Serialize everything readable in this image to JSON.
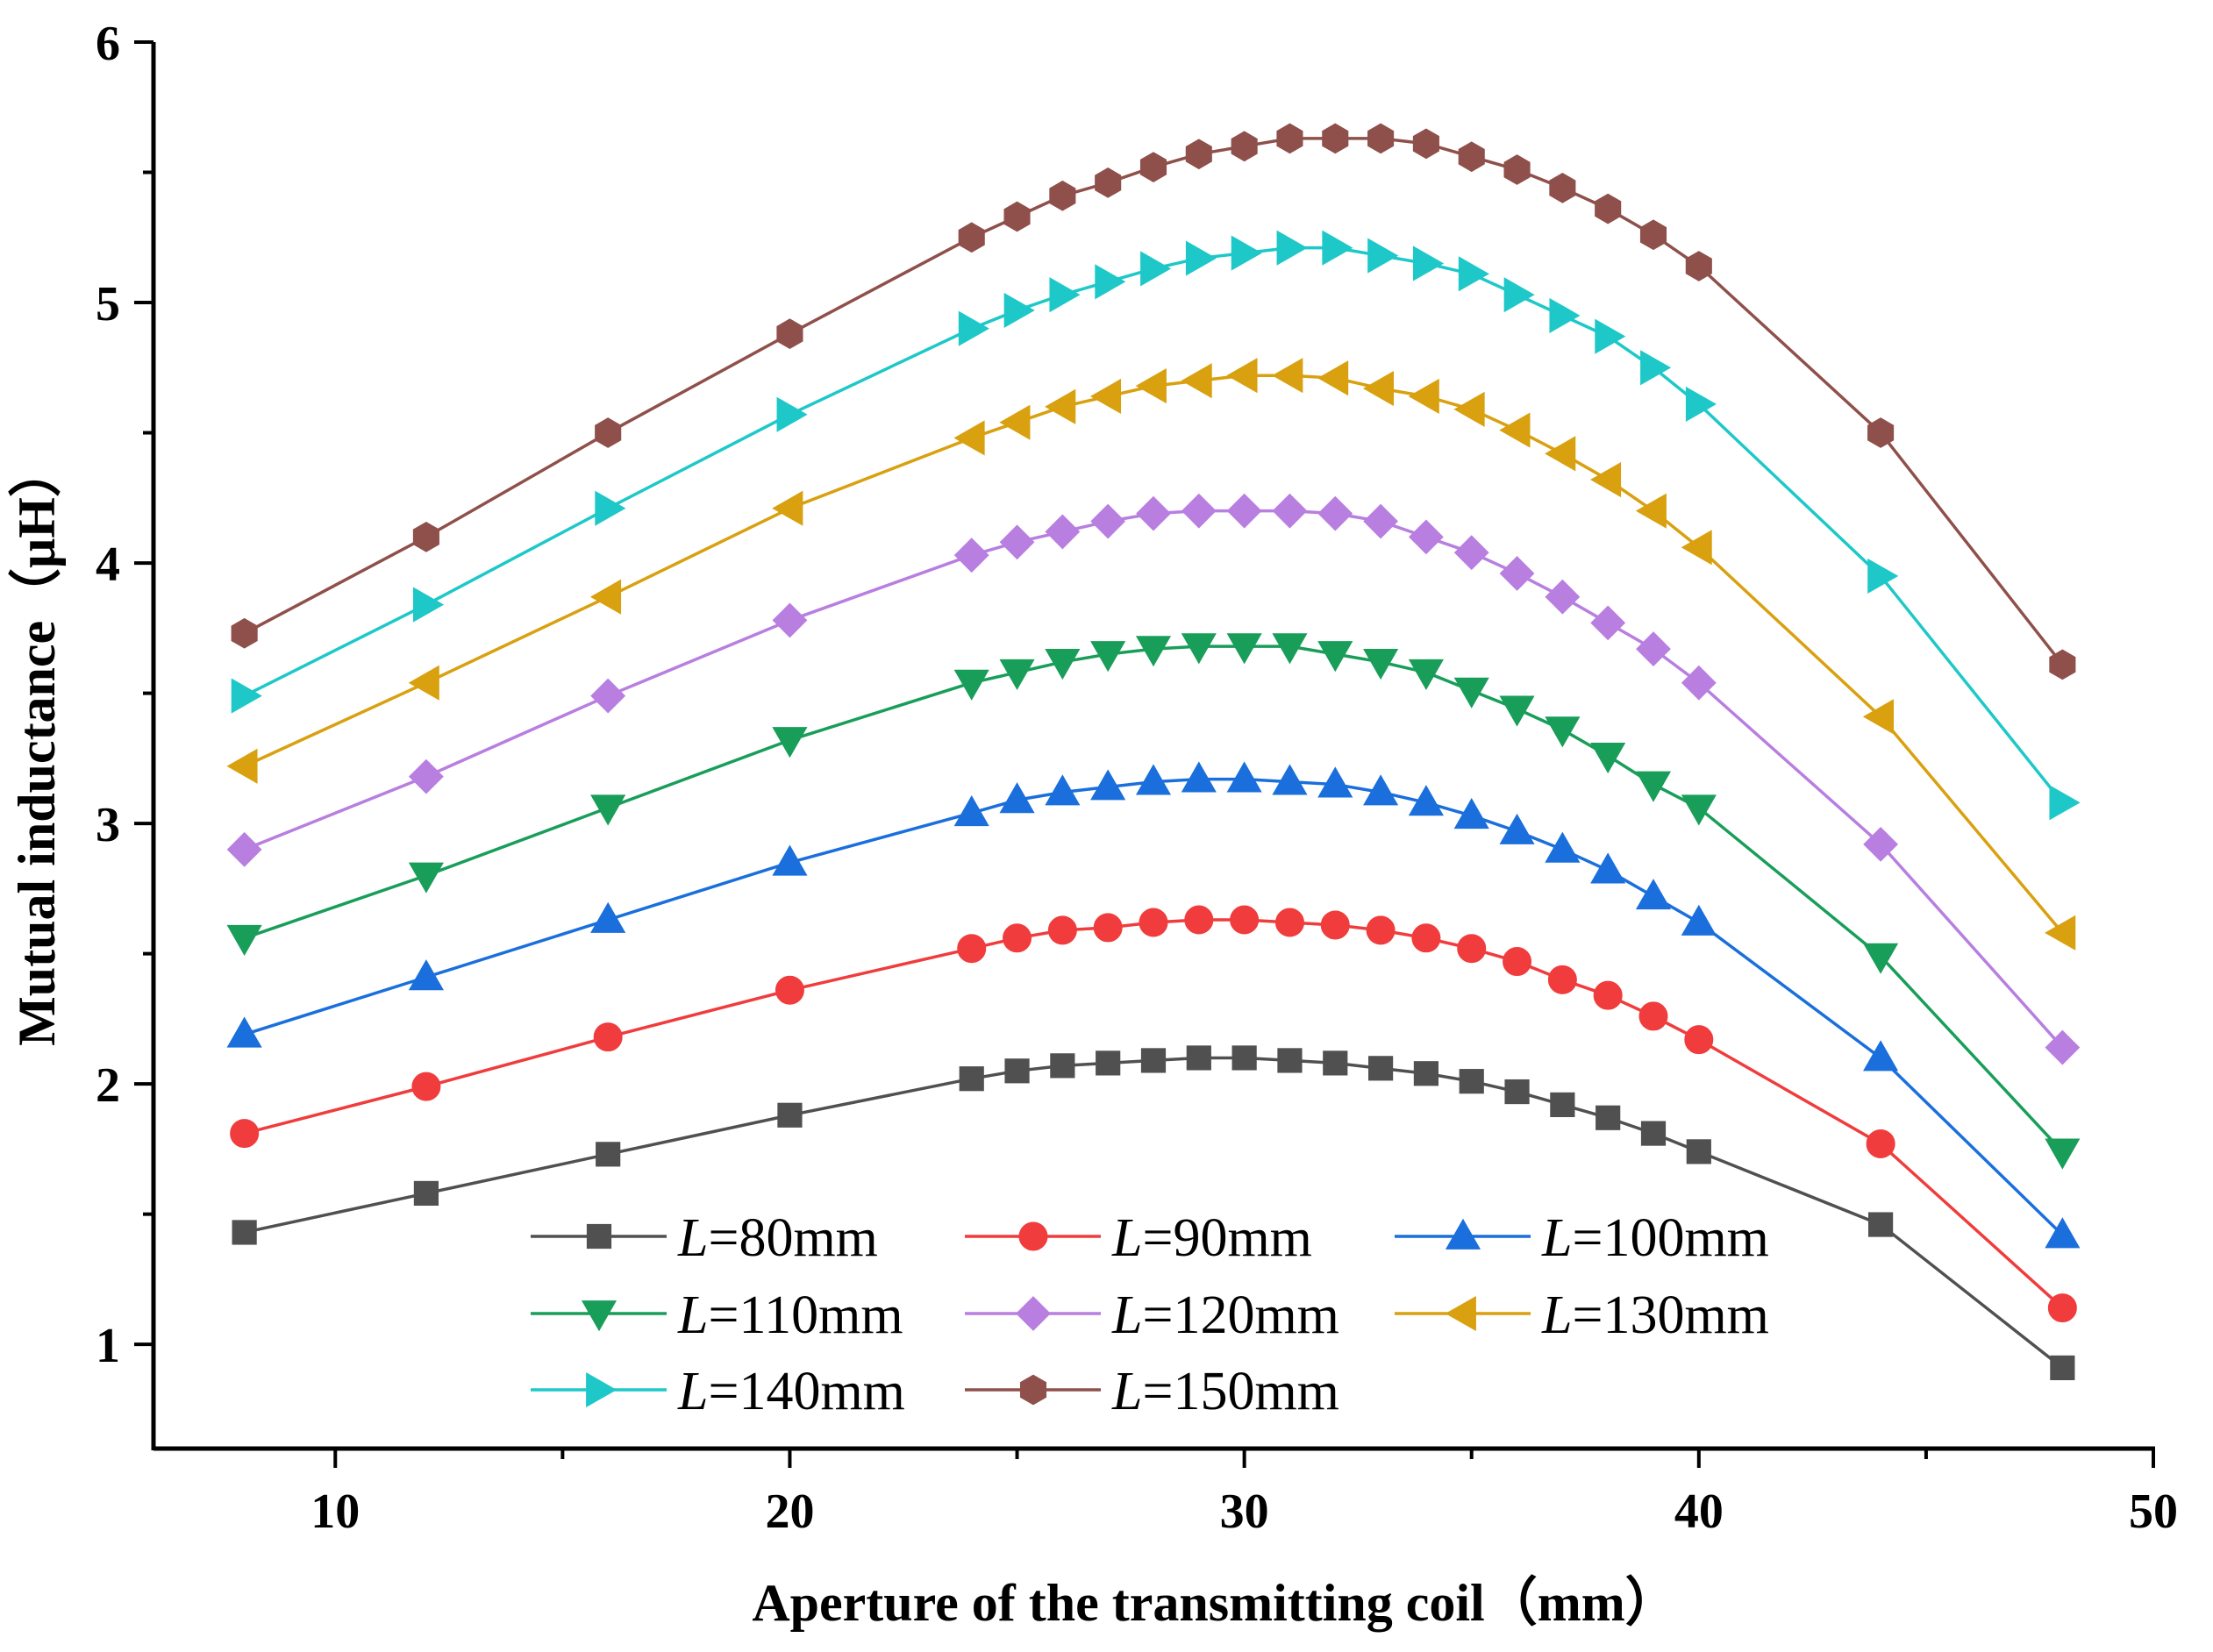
{
  "chart_data": {
    "type": "line",
    "xlabel": "Aperture of the transmitting coil（mm）",
    "ylabel": "Mutual inductance（μH）",
    "xlim": [
      6,
      50
    ],
    "ylim": [
      0.6,
      6
    ],
    "xticks": [
      10,
      20,
      30,
      40,
      50
    ],
    "yticks": [
      1,
      2,
      3,
      4,
      5,
      6
    ],
    "grid": false,
    "legend_position": "bottom-left",
    "x": [
      8,
      12,
      16,
      20,
      24,
      25,
      26,
      27,
      28,
      29,
      30,
      31,
      32,
      33,
      34,
      35,
      36,
      37,
      38,
      39,
      40,
      44,
      48
    ],
    "series": [
      {
        "name_prefix": "L",
        "name_suffix": "=80mm",
        "color": "#505050",
        "marker": "square",
        "values": [
          1.43,
          1.58,
          1.73,
          1.88,
          2.02,
          2.05,
          2.07,
          2.08,
          2.09,
          2.1,
          2.1,
          2.09,
          2.08,
          2.06,
          2.04,
          2.01,
          1.97,
          1.92,
          1.87,
          1.81,
          1.74,
          1.46,
          0.91
        ]
      },
      {
        "name_prefix": "L",
        "name_suffix": "=90mm",
        "color": "#f03c3c",
        "marker": "circle",
        "values": [
          1.81,
          1.99,
          2.18,
          2.36,
          2.52,
          2.56,
          2.59,
          2.6,
          2.62,
          2.63,
          2.63,
          2.62,
          2.61,
          2.59,
          2.56,
          2.52,
          2.47,
          2.4,
          2.34,
          2.26,
          2.17,
          1.77,
          1.14
        ]
      },
      {
        "name_prefix": "L",
        "name_suffix": "=100mm",
        "color": "#1a6fdc",
        "marker": "triangle-up",
        "values": [
          2.19,
          2.41,
          2.63,
          2.85,
          3.04,
          3.09,
          3.12,
          3.14,
          3.16,
          3.17,
          3.17,
          3.16,
          3.15,
          3.12,
          3.08,
          3.03,
          2.97,
          2.9,
          2.82,
          2.72,
          2.62,
          2.1,
          1.42
        ]
      },
      {
        "name_prefix": "L",
        "name_suffix": "=110mm",
        "color": "#199e5a",
        "marker": "triangle-down",
        "values": [
          2.56,
          2.8,
          3.06,
          3.32,
          3.54,
          3.58,
          3.62,
          3.65,
          3.67,
          3.68,
          3.68,
          3.68,
          3.65,
          3.62,
          3.58,
          3.51,
          3.44,
          3.36,
          3.26,
          3.15,
          3.06,
          2.49,
          1.74
        ]
      },
      {
        "name_prefix": "L",
        "name_suffix": "=120mm",
        "color": "#b87ee0",
        "marker": "diamond",
        "values": [
          2.9,
          3.18,
          3.49,
          3.78,
          4.03,
          4.08,
          4.12,
          4.16,
          4.19,
          4.2,
          4.2,
          4.2,
          4.19,
          4.16,
          4.1,
          4.04,
          3.96,
          3.87,
          3.77,
          3.67,
          3.54,
          2.92,
          2.14
        ]
      },
      {
        "name_prefix": "L",
        "name_suffix": "=130mm",
        "color": "#d9a00f",
        "marker": "triangle-left",
        "values": [
          3.22,
          3.54,
          3.87,
          4.21,
          4.48,
          4.54,
          4.6,
          4.64,
          4.68,
          4.7,
          4.72,
          4.72,
          4.71,
          4.67,
          4.64,
          4.59,
          4.51,
          4.42,
          4.32,
          4.2,
          4.06,
          3.41,
          2.58
        ]
      },
      {
        "name_prefix": "L",
        "name_suffix": "=140mm",
        "color": "#1ec8c8",
        "marker": "triangle-right",
        "values": [
          3.49,
          3.84,
          4.21,
          4.57,
          4.9,
          4.97,
          5.03,
          5.08,
          5.13,
          5.17,
          5.19,
          5.21,
          5.21,
          5.18,
          5.15,
          5.11,
          5.03,
          4.95,
          4.87,
          4.75,
          4.61,
          3.95,
          3.08
        ]
      },
      {
        "name_prefix": "L",
        "name_suffix": "=150mm",
        "color": "#8f504b",
        "marker": "hexagon",
        "values": [
          3.73,
          4.1,
          4.5,
          4.88,
          5.25,
          5.33,
          5.41,
          5.46,
          5.52,
          5.57,
          5.6,
          5.63,
          5.63,
          5.63,
          5.61,
          5.56,
          5.51,
          5.44,
          5.36,
          5.26,
          5.14,
          4.5,
          3.61
        ]
      }
    ]
  }
}
